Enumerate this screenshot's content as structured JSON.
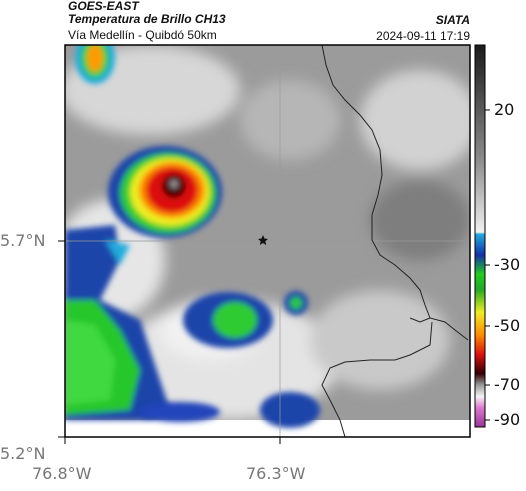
{
  "header": {
    "satellite": "GOES-EAST",
    "product": "Temperatura de Brillo CH13",
    "route": "Vía Medellín - Quibdó 50km",
    "org": "SIATA",
    "datetime": "2024-09-11 17:19"
  },
  "axes": {
    "lat_ticks": [
      "5.7°N",
      "5.2°N"
    ],
    "lon_ticks": [
      "76.8°W",
      "76.3°W"
    ]
  },
  "colorbar": {
    "ticks": [
      "20",
      "-30",
      "-50",
      "-70",
      "-90"
    ]
  },
  "colors": {
    "frame": "#000000",
    "gridline": "#9a9a9a",
    "border_line": "#222222"
  }
}
